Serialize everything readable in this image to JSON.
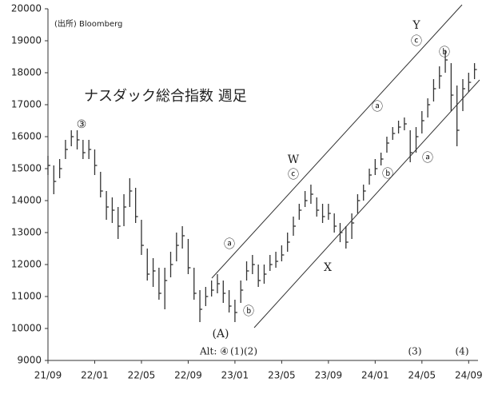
{
  "chart_data": {
    "type": "hlc",
    "title": "ナスダック総合指数 週足",
    "source": "(出所) Bloomberg",
    "xlim": [
      0,
      36.8
    ],
    "xticks": [
      {
        "value": 0,
        "label": "21/09"
      },
      {
        "value": 4,
        "label": "22/01"
      },
      {
        "value": 8,
        "label": "22/05"
      },
      {
        "value": 12,
        "label": "22/09"
      },
      {
        "value": 16,
        "label": "23/01"
      },
      {
        "value": 20,
        "label": "23/05"
      },
      {
        "value": 24,
        "label": "23/09"
      },
      {
        "value": 28,
        "label": "24/01"
      },
      {
        "value": 32,
        "label": "24/05"
      },
      {
        "value": 36,
        "label": "24/09"
      }
    ],
    "ylim": [
      9000,
      20000
    ],
    "yticks": [
      9000,
      10000,
      11000,
      12000,
      13000,
      14000,
      15000,
      16000,
      17000,
      18000,
      19000,
      20000
    ],
    "color": "#333333",
    "x": [
      0,
      0.5,
      1,
      1.5,
      2,
      2.5,
      3,
      3.5,
      4,
      4.5,
      5,
      5.5,
      6,
      6.5,
      7,
      7.5,
      8,
      8.5,
      9,
      9.5,
      10,
      10.5,
      11,
      11.5,
      12,
      12.5,
      13,
      13.5,
      14,
      14.5,
      15,
      15.5,
      16,
      16.5,
      17,
      17.5,
      18,
      18.5,
      19,
      19.5,
      20,
      20.5,
      21,
      21.5,
      22,
      22.5,
      23,
      23.5,
      24,
      24.5,
      25,
      25.5,
      26,
      26.5,
      27,
      27.5,
      28,
      28.5,
      29,
      29.5,
      30,
      30.5,
      31,
      31.5,
      32,
      32.5,
      33,
      33.5,
      34,
      34.5,
      35,
      35.5,
      36,
      36.5
    ],
    "high": [
      15400,
      15100,
      15300,
      15900,
      16200,
      16200,
      15900,
      15900,
      15600,
      14900,
      14300,
      14100,
      13800,
      14200,
      14700,
      14400,
      13400,
      12500,
      12200,
      11900,
      11900,
      12400,
      13000,
      13200,
      12800,
      11900,
      11200,
      11300,
      11500,
      11700,
      11500,
      11200,
      10900,
      11500,
      12100,
      12300,
      12000,
      12000,
      12300,
      12400,
      12600,
      13000,
      13500,
      13900,
      14300,
      14500,
      14100,
      13900,
      13900,
      13600,
      13300,
      13200,
      13600,
      14200,
      14500,
      15000,
      15300,
      15500,
      16000,
      16300,
      16500,
      16600,
      16200,
      16300,
      16800,
      17200,
      17800,
      18200,
      18700,
      18300,
      17600,
      17800,
      18000,
      18300
    ],
    "low": [
      14800,
      14200,
      14700,
      15300,
      15700,
      15600,
      15300,
      15300,
      14800,
      14100,
      13400,
      13300,
      12800,
      13200,
      13800,
      13300,
      12300,
      11500,
      11300,
      10900,
      10600,
      11600,
      12100,
      12500,
      11700,
      10900,
      10200,
      10700,
      11000,
      11100,
      10800,
      10500,
      10200,
      10800,
      11500,
      11700,
      11300,
      11400,
      11800,
      11900,
      12100,
      12400,
      12900,
      13400,
      13800,
      13900,
      13500,
      13300,
      13400,
      13000,
      12700,
      12500,
      12800,
      13600,
      14000,
      14500,
      14800,
      15100,
      15500,
      15900,
      16100,
      16200,
      15200,
      15500,
      16100,
      16600,
      17100,
      17500,
      18000,
      16800,
      15700,
      16800,
      17400,
      17800
    ],
    "close": [
      15100,
      14600,
      15000,
      15600,
      16000,
      15900,
      15500,
      15600,
      15100,
      14300,
      13800,
      13700,
      13200,
      13800,
      14300,
      13500,
      12600,
      11700,
      11800,
      11100,
      11500,
      12000,
      12600,
      12900,
      11900,
      11100,
      10600,
      11000,
      11200,
      11400,
      11100,
      10700,
      10500,
      11200,
      11800,
      12000,
      11500,
      11700,
      12000,
      12100,
      12300,
      12700,
      13200,
      13700,
      14000,
      14200,
      13700,
      13500,
      13600,
      13200,
      13000,
      12700,
      13300,
      14000,
      14300,
      14800,
      15000,
      15300,
      15800,
      16100,
      16300,
      16400,
      15500,
      16000,
      16500,
      17000,
      17500,
      17900,
      18400,
      17300,
      16200,
      17500,
      17700,
      18100
    ],
    "annotations": [
      "③",
      "ⓐ",
      "ⓑ",
      "(A)",
      "W",
      "ⓒ",
      "X",
      "ⓐ",
      "ⓑ",
      "Y",
      "ⓒ",
      "ⓑ",
      "ⓐ",
      "Alt: ④",
      "(1)(2)",
      "(3)",
      "(4)"
    ]
  }
}
